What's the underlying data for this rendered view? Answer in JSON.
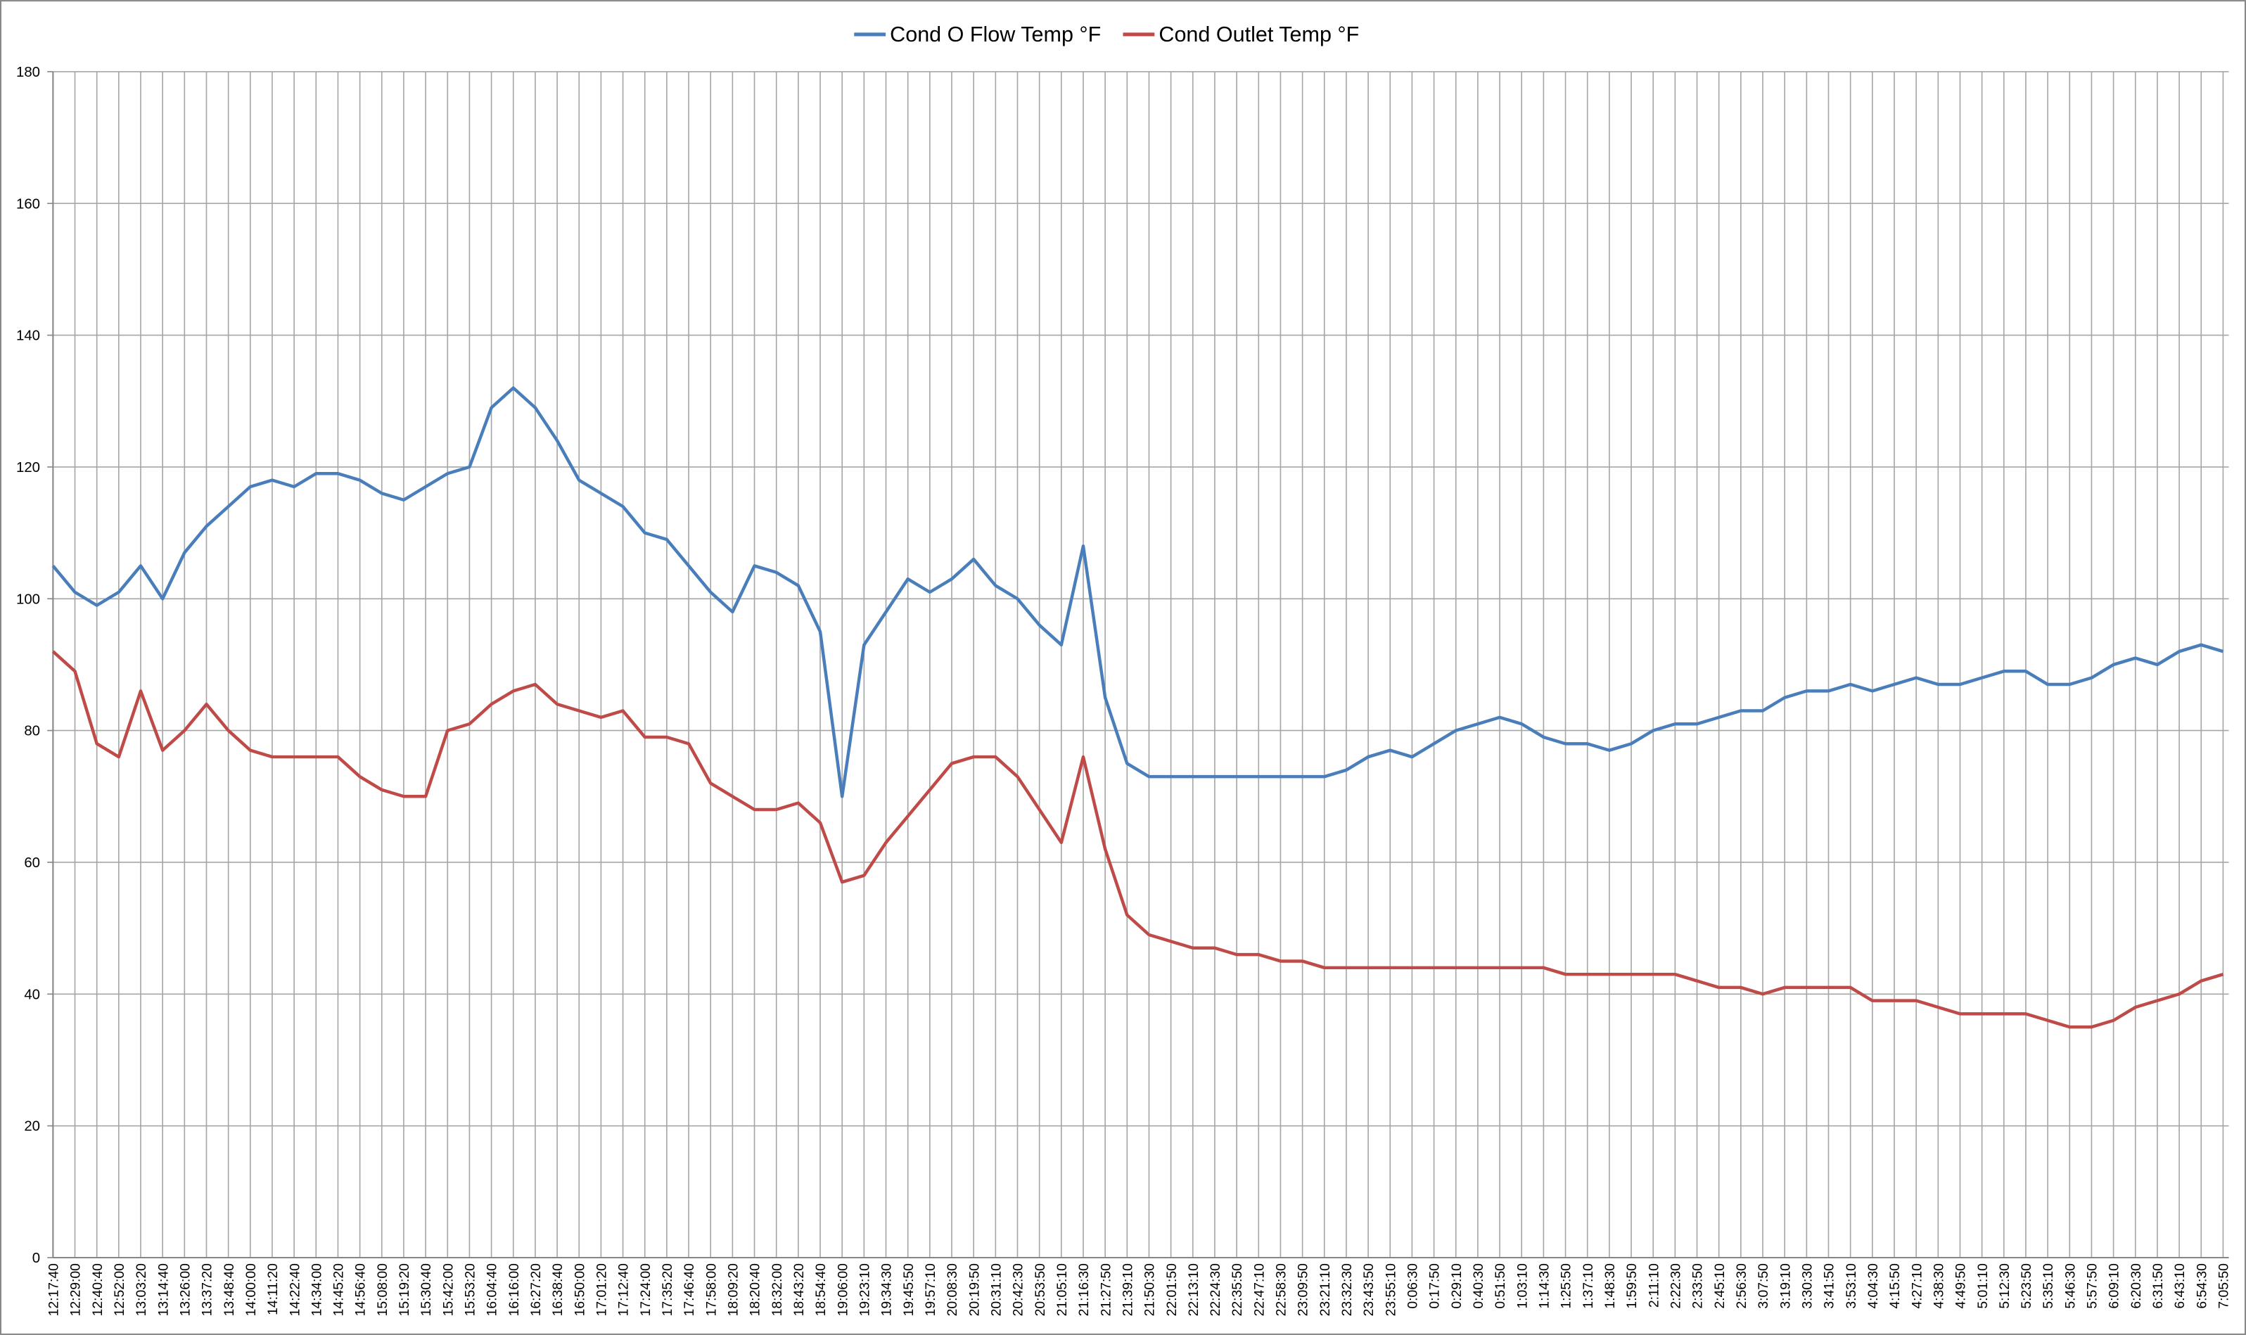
{
  "chart_data": {
    "type": "line",
    "categories": [
      "12:17:40",
      "12:29:00",
      "12:40:40",
      "12:52:00",
      "13:03:20",
      "13:14:40",
      "13:26:00",
      "13:37:20",
      "13:48:40",
      "14:00:00",
      "14:11:20",
      "14:22:40",
      "14:34:00",
      "14:45:20",
      "14:56:40",
      "15:08:00",
      "15:19:20",
      "15:30:40",
      "15:42:00",
      "15:53:20",
      "16:04:40",
      "16:16:00",
      "16:27:20",
      "16:38:40",
      "16:50:00",
      "17:01:20",
      "17:12:40",
      "17:24:00",
      "17:35:20",
      "17:46:40",
      "17:58:00",
      "18:09:20",
      "18:20:40",
      "18:32:00",
      "18:43:20",
      "18:54:40",
      "19:06:00",
      "19:23:10",
      "19:34:30",
      "19:45:50",
      "19:57:10",
      "20:08:30",
      "20:19:50",
      "20:31:10",
      "20:42:30",
      "20:53:50",
      "21:05:10",
      "21:16:30",
      "21:27:50",
      "21:39:10",
      "21:50:30",
      "22:01:50",
      "22:13:10",
      "22:24:30",
      "22:35:50",
      "22:47:10",
      "22:58:30",
      "23:09:50",
      "23:21:10",
      "23:32:30",
      "23:43:50",
      "23:55:10",
      "0:06:30",
      "0:17:50",
      "0:29:10",
      "0:40:30",
      "0:51:50",
      "1:03:10",
      "1:14:30",
      "1:25:50",
      "1:37:10",
      "1:48:30",
      "1:59:50",
      "2:11:10",
      "2:22:30",
      "2:33:50",
      "2:45:10",
      "2:56:30",
      "3:07:50",
      "3:19:10",
      "3:30:30",
      "3:41:50",
      "3:53:10",
      "4:04:30",
      "4:15:50",
      "4:27:10",
      "4:38:30",
      "4:49:50",
      "5:01:10",
      "5:12:30",
      "5:23:50",
      "5:35:10",
      "5:46:30",
      "5:57:50",
      "6:09:10",
      "6:20:30",
      "6:31:50",
      "6:43:10",
      "6:54:30",
      "7:05:50"
    ],
    "series": [
      {
        "name": "Cond O Flow Temp °F",
        "color": "#4a7ebb",
        "values": [
          105,
          101,
          99,
          101,
          105,
          100,
          107,
          111,
          114,
          117,
          118,
          117,
          119,
          119,
          118,
          116,
          115,
          117,
          119,
          120,
          129,
          132,
          129,
          124,
          118,
          116,
          114,
          110,
          109,
          105,
          101,
          98,
          105,
          104,
          102,
          95,
          70,
          93,
          98,
          103,
          101,
          103,
          106,
          102,
          100,
          96,
          93,
          108,
          85,
          75,
          73,
          73,
          73,
          73,
          73,
          73,
          73,
          73,
          73,
          74,
          76,
          77,
          76,
          78,
          80,
          81,
          82,
          81,
          79,
          78,
          78,
          77,
          78,
          80,
          81,
          81,
          82,
          83,
          83,
          85,
          86,
          86,
          87,
          86,
          87,
          88,
          87,
          87,
          88,
          89,
          89,
          87,
          87,
          88,
          90,
          91,
          90,
          92,
          93,
          92
        ]
      },
      {
        "name": "Cond Outlet Temp °F",
        "color": "#be4b48",
        "values": [
          92,
          89,
          78,
          76,
          86,
          77,
          80,
          84,
          80,
          77,
          76,
          76,
          76,
          76,
          73,
          71,
          70,
          70,
          80,
          81,
          84,
          86,
          87,
          84,
          83,
          82,
          83,
          79,
          79,
          78,
          72,
          70,
          68,
          68,
          69,
          66,
          57,
          58,
          63,
          67,
          71,
          75,
          76,
          76,
          73,
          68,
          63,
          76,
          62,
          52,
          49,
          48,
          47,
          47,
          46,
          46,
          45,
          45,
          44,
          44,
          44,
          44,
          44,
          44,
          44,
          44,
          44,
          44,
          44,
          43,
          43,
          43,
          43,
          43,
          43,
          42,
          41,
          41,
          40,
          41,
          41,
          41,
          41,
          39,
          39,
          39,
          38,
          37,
          37,
          37,
          37,
          36,
          35,
          35,
          36,
          38,
          39,
          40,
          42,
          43
        ]
      }
    ],
    "ylim": [
      0,
      180
    ],
    "yticks": [
      0,
      20,
      40,
      60,
      80,
      100,
      120,
      140,
      160,
      180
    ],
    "grid": true,
    "legend": "top"
  }
}
